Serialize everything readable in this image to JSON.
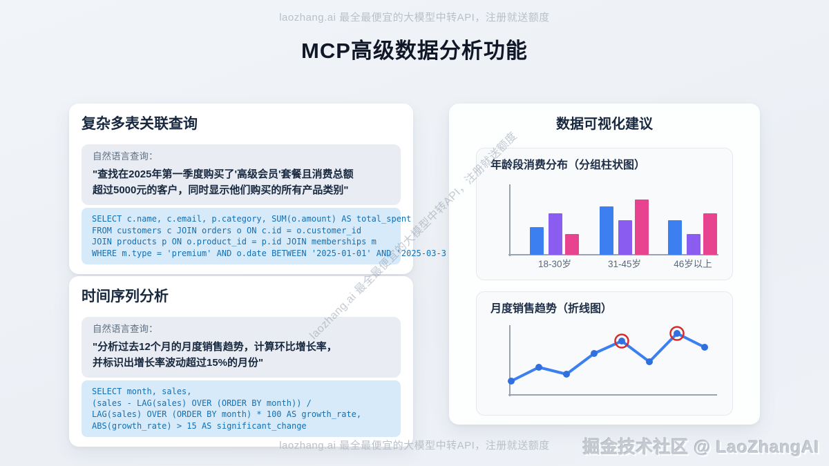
{
  "page": {
    "top_tagline": "laozhang.ai 最全最便宜的大模型中转API，注册就送额度",
    "title": "MCP高级数据分析功能",
    "diagonal_watermark": "laozhang.ai 最全最便宜的大模型中转API，注册就送额度",
    "footer_tagline": "laozhang.ai 最全最便宜的大模型中转API，注册就送额度",
    "footer_credit": "掘金技术社区 @ LaoZhangAI"
  },
  "colors": {
    "accent_blue": "#3b7ff0",
    "accent_purple": "#8b5cf0",
    "accent_pink": "#e8438f",
    "highlight_red": "#d52b2b",
    "code_text": "#1270b5",
    "axis_gray": "#99a2ad",
    "label_gray": "#5b6878"
  },
  "cards": {
    "multi_table": {
      "title": "复杂多表关联查询",
      "query_label": "自然语言查询：",
      "query_text": "\"查找在2025年第一季度购买了'高级会员'套餐且消费总额\n超过5000元的客户，同时显示他们购买的所有产品类别\"",
      "sql": "SELECT c.name, c.email, p.category, SUM(o.amount) AS total_spent\nFROM customers c JOIN orders o ON c.id = o.customer_id\nJOIN products p ON o.product_id = p.id JOIN memberships m\nWHERE m.type = 'premium' AND o.date BETWEEN '2025-01-01' AND '2025-03-3"
    },
    "time_series": {
      "title": "时间序列分析",
      "query_label": "自然语言查询：",
      "query_text": "\"分析过去12个月的月度销售趋势，计算环比增长率，\n并标识出增长率波动超过15%的月份\"",
      "sql": "SELECT month, sales,\n(sales - LAG(sales) OVER (ORDER BY month)) /\nLAG(sales) OVER (ORDER BY month) * 100 AS growth_rate,\nABS(growth_rate) > 15 AS significant_change"
    },
    "visualization": {
      "title": "数据可视化建议"
    }
  },
  "chart_data": [
    {
      "type": "bar",
      "title": "年龄段消费分布（分组柱状图）",
      "categories": [
        "18-30岁",
        "31-45岁",
        "46岁以上"
      ],
      "series": [
        {
          "name": "blue",
          "color": "#3b7ff0",
          "values": [
            40,
            70,
            50
          ]
        },
        {
          "name": "purple",
          "color": "#8b5cf0",
          "values": [
            60,
            50,
            30
          ]
        },
        {
          "name": "pink",
          "color": "#e8438f",
          "values": [
            30,
            80,
            60
          ]
        }
      ],
      "xlabel": "",
      "ylabel": "",
      "ylim": [
        0,
        100
      ],
      "grid": false,
      "legend": false
    },
    {
      "type": "line",
      "title": "月度销售趋势（折线图）",
      "x": [
        1,
        2,
        3,
        4,
        5,
        6,
        7,
        8
      ],
      "values": [
        20,
        40,
        30,
        60,
        78,
        48,
        89,
        69
      ],
      "highlighted_indices": [
        4,
        6
      ],
      "line_color": "#3b7ff0",
      "point_color": "#2f6fe0",
      "highlight_ring_color": "#d52b2b",
      "xlabel": "",
      "ylabel": "",
      "ylim": [
        0,
        100
      ],
      "grid": false,
      "legend": false
    }
  ]
}
